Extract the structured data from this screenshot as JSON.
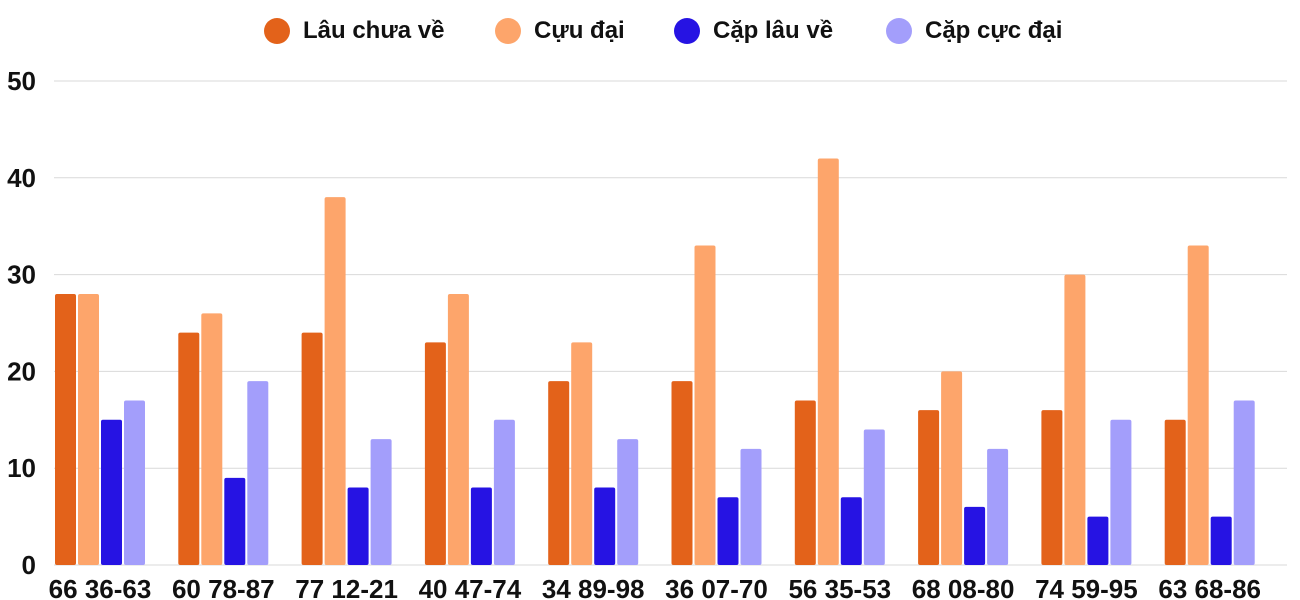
{
  "chart_data": {
    "type": "bar",
    "categories": [
      "66 36-63",
      "60 78-87",
      "77 12-21",
      "40 47-74",
      "34 89-98",
      "36 07-70",
      "56 35-53",
      "68 08-80",
      "74 59-95",
      "63 68-86"
    ],
    "series": [
      {
        "name": "Lâu chưa về",
        "color": "#E3621A",
        "values": [
          28,
          24,
          24,
          23,
          19,
          19,
          17,
          16,
          16,
          15
        ]
      },
      {
        "name": "Cựu đại",
        "color": "#FDA56B",
        "values": [
          28,
          26,
          38,
          28,
          23,
          33,
          42,
          20,
          30,
          33
        ]
      },
      {
        "name": "Cặp lâu về",
        "color": "#2613E3",
        "values": [
          15,
          9,
          8,
          8,
          8,
          7,
          7,
          6,
          5,
          5
        ]
      },
      {
        "name": "Cặp cực đại",
        "color": "#A39EFB",
        "values": [
          17,
          19,
          13,
          15,
          13,
          12,
          14,
          12,
          15,
          17
        ]
      }
    ],
    "ylim": [
      0,
      50
    ],
    "yticks": [
      0,
      10,
      20,
      30,
      40,
      50
    ],
    "grid": true,
    "legend_position": "top-center"
  }
}
